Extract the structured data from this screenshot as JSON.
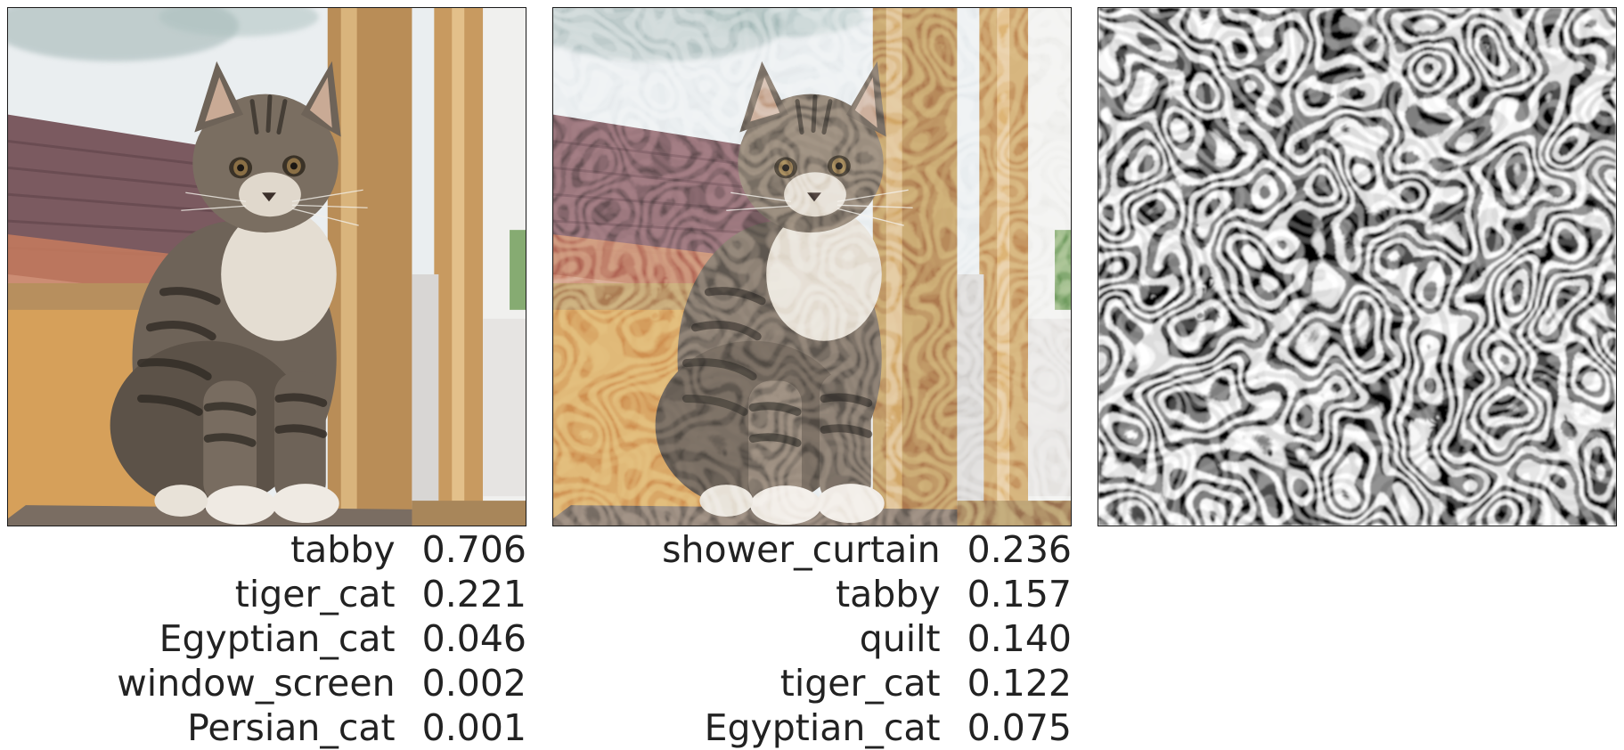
{
  "panels": [
    {
      "name": "original-image",
      "content": "kitten",
      "predictions": [
        {
          "label": "tabby",
          "score": "0.706"
        },
        {
          "label": "tiger_cat",
          "score": "0.221"
        },
        {
          "label": "Egyptian_cat",
          "score": "0.046"
        },
        {
          "label": "window_screen",
          "score": "0.002"
        },
        {
          "label": "Persian_cat",
          "score": "0.001"
        }
      ]
    },
    {
      "name": "perturbed-image",
      "content": "kitten-with-pattern-overlay",
      "predictions": [
        {
          "label": "shower_curtain",
          "score": "0.236"
        },
        {
          "label": "tabby",
          "score": "0.157"
        },
        {
          "label": "quilt",
          "score": "0.140"
        },
        {
          "label": "tiger_cat",
          "score": "0.122"
        },
        {
          "label": "Egyptian_cat",
          "score": "0.075"
        }
      ]
    },
    {
      "name": "perturbation-pattern",
      "content": "black-and-white-swirl-pattern",
      "predictions": []
    }
  ],
  "colors": {
    "text": "#222222",
    "border": "#1a1a1a",
    "sky": "#e9eef0",
    "roof": "#7d5c62",
    "wood": "#c49a5c",
    "fur": "#6f6457"
  }
}
